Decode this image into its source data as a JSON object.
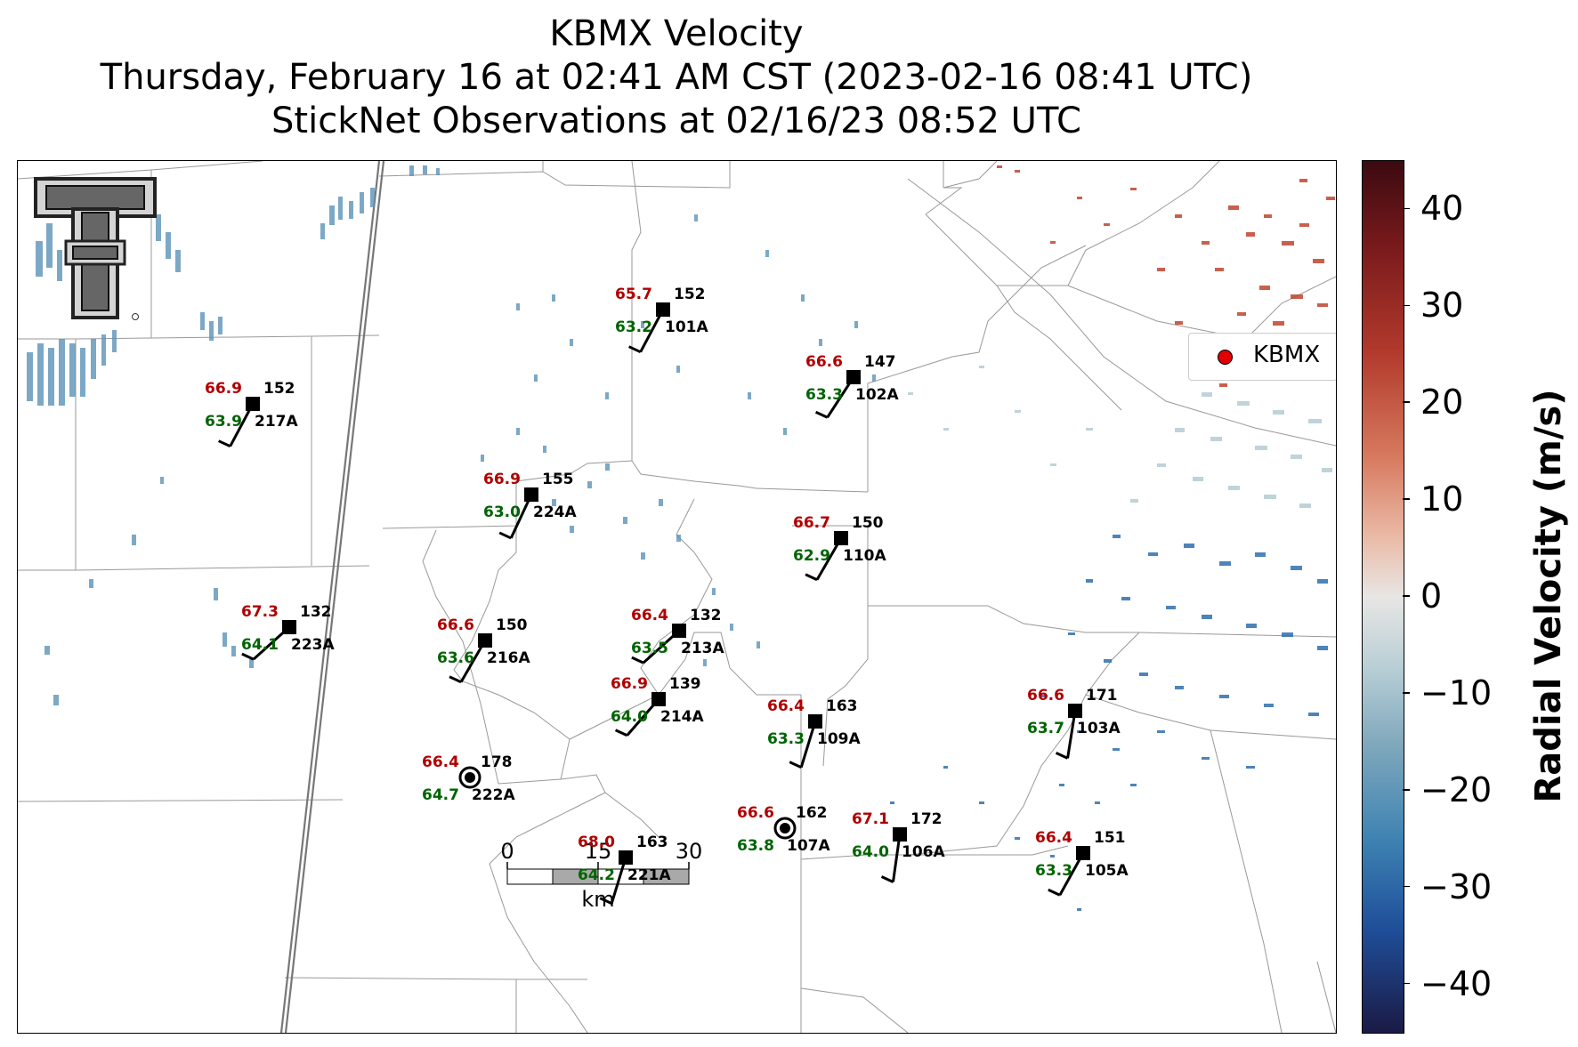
{
  "title": {
    "line1": "KBMX Velocity",
    "line2": "Thursday, February 16 at 02:41 AM CST (2023-02-16 08:41 UTC)",
    "line3": "StickNet Observations at 02/16/23 08:52 UTC"
  },
  "legend": {
    "label": "KBMX",
    "marker_color": "#e00000"
  },
  "colorbar": {
    "label": "Radial Velocity (m/s)",
    "min": -45,
    "max": 45,
    "ticks": [
      {
        "value": 40,
        "label": "40"
      },
      {
        "value": 30,
        "label": "30"
      },
      {
        "value": 20,
        "label": "20"
      },
      {
        "value": 10,
        "label": "10"
      },
      {
        "value": 0,
        "label": "0"
      },
      {
        "value": -10,
        "label": "−10"
      },
      {
        "value": -20,
        "label": "−20"
      },
      {
        "value": -30,
        "label": "−30"
      },
      {
        "value": -40,
        "label": "−40"
      }
    ]
  },
  "scalebar": {
    "ticks": [
      "0",
      "15",
      "30"
    ],
    "unit": "km"
  },
  "colors": {
    "temperature": "#b00000",
    "dewpoint": "#006400",
    "positive_velocity": "#c0452f",
    "negative_velocity": "#2e6fae"
  },
  "stations": [
    {
      "id": "101A",
      "temp": "65.7",
      "dewpoint": "63.2",
      "direction": "152",
      "obs": "barb"
    },
    {
      "id": "102A",
      "temp": "66.6",
      "dewpoint": "63.3",
      "direction": "147",
      "obs": "barb"
    },
    {
      "id": "217A",
      "temp": "66.9",
      "dewpoint": "63.9",
      "direction": "152",
      "obs": "barb"
    },
    {
      "id": "224A",
      "temp": "66.9",
      "dewpoint": "63.0",
      "direction": "155",
      "obs": "barb"
    },
    {
      "id": "110A",
      "temp": "66.7",
      "dewpoint": "62.9",
      "direction": "150",
      "obs": "barb"
    },
    {
      "id": "223A",
      "temp": "67.3",
      "dewpoint": "64.1",
      "direction": "132",
      "obs": "barb"
    },
    {
      "id": "216A",
      "temp": "66.6",
      "dewpoint": "63.6",
      "direction": "150",
      "obs": "barb"
    },
    {
      "id": "213A",
      "temp": "66.4",
      "dewpoint": "63.5",
      "direction": "132",
      "obs": "barb"
    },
    {
      "id": "214A",
      "temp": "66.9",
      "dewpoint": "64.0",
      "direction": "139",
      "obs": "barb"
    },
    {
      "id": "109A",
      "temp": "66.4",
      "dewpoint": "63.3",
      "direction": "163",
      "obs": "barb"
    },
    {
      "id": "103A",
      "temp": "66.6",
      "dewpoint": "63.7",
      "direction": "171",
      "obs": "barb"
    },
    {
      "id": "222A",
      "temp": "66.4",
      "dewpoint": "64.7",
      "direction": "178",
      "obs": "calm"
    },
    {
      "id": "107A",
      "temp": "66.6",
      "dewpoint": "63.8",
      "direction": "162",
      "obs": "calm"
    },
    {
      "id": "106A",
      "temp": "67.1",
      "dewpoint": "64.0",
      "direction": "172",
      "obs": "barb"
    },
    {
      "id": "221A",
      "temp": "68.0",
      "dewpoint": "64.2",
      "direction": "163",
      "obs": "barb"
    },
    {
      "id": "105A",
      "temp": "66.4",
      "dewpoint": "63.3",
      "direction": "151",
      "obs": "barb"
    }
  ]
}
